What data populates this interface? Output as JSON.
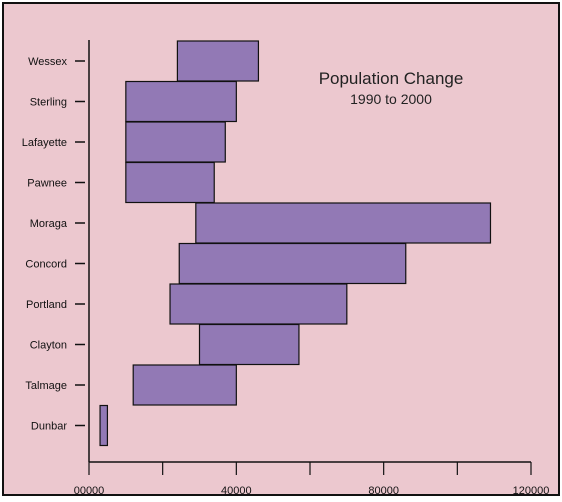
{
  "chart_data": {
    "type": "bar",
    "orientation": "horizontal",
    "title": "Population Change",
    "subtitle": "1990 to 2000",
    "categories": [
      "Wessex",
      "Sterling",
      "Lafayette",
      "Pawnee",
      "Moraga",
      "Concord",
      "Portland",
      "Clayton",
      "Talmage",
      "Dunbar"
    ],
    "series": [
      {
        "values_start": [
          24000,
          10000,
          10000,
          10000,
          29000,
          24500,
          22000,
          30000,
          12000,
          3000
        ],
        "values_end": [
          46000,
          40000,
          37000,
          34000,
          109000,
          86000,
          70000,
          57000,
          40000,
          5000
        ]
      }
    ],
    "xlim": [
      0,
      120000
    ],
    "xticks": [
      "00000",
      "40000",
      "80000",
      "120000"
    ],
    "xtick_values": [
      0,
      40000,
      80000,
      120000
    ],
    "grid": false,
    "colors": {
      "bar_fill": "#9279b5",
      "bar_stroke": "#111111",
      "plot_background": "#ecc8cf",
      "frame": "#111111"
    }
  }
}
